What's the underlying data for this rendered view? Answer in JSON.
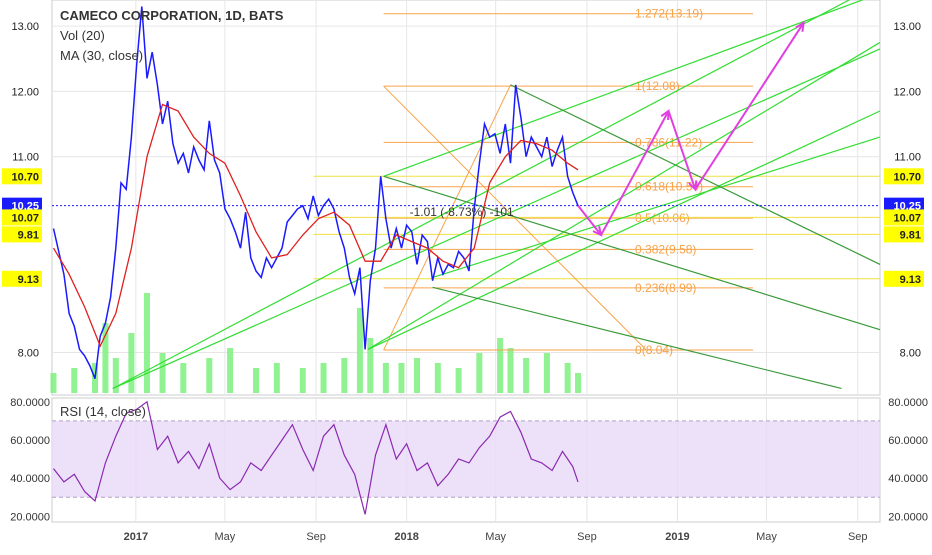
{
  "legend": {
    "title": "CAMECO CORPORATION, 1D, BATS",
    "vol": "Vol (20)",
    "ma": "MA (30, close)",
    "rsi": "RSI (14, close)"
  },
  "colors": {
    "price": "#1a1aff",
    "ma": "#e02020",
    "volume": "#7cf07c",
    "pitchfork": "#33dd33",
    "pitchfork_dark": "#3a9a3a",
    "fib": "#f7a34a",
    "fib_yellow": "#f0e040",
    "projection": "#e040e0",
    "rsi_line": "#8a2ab0",
    "rsi_band": "#e8d8f8",
    "current_price_line": "#1a1aff",
    "grid": "#e6e6e6"
  },
  "annotations": {
    "measure": "-1.01 (-8.73%) -101"
  },
  "chart_data": [
    {
      "type": "line",
      "title": "CAMECO CORPORATION, 1D, BATS",
      "x_tick_labels": [
        "2017",
        "May",
        "Sep",
        "2018",
        "May",
        "Sep",
        "2019",
        "May",
        "Sep"
      ],
      "x_ticks": [
        "2017-01",
        "2017-05",
        "2017-09",
        "2018-01",
        "2018-05",
        "2018-09",
        "2019-01",
        "2019-05",
        "2019-09"
      ],
      "y_ticks": [
        8.0,
        11.0,
        12.0,
        13.0
      ],
      "y_tick_labels": [
        "8.00",
        "11.00",
        "12.00",
        "13.00"
      ],
      "ylim": [
        7.35,
        13.4
      ],
      "xlim": [
        "2016-09-10",
        "2019-10-01"
      ],
      "series": [
        {
          "name": "",
          "role": "price",
          "x": [
            "2016-09-12",
            "2016-09-19",
            "2016-09-26",
            "2016-10-03",
            "2016-10-10",
            "2016-10-17",
            "2016-10-24",
            "2016-10-31",
            "2016-11-07",
            "2016-11-14",
            "2016-11-21",
            "2016-11-28",
            "2016-12-05",
            "2016-12-12",
            "2016-12-19",
            "2016-12-26",
            "2017-01-02",
            "2017-01-09",
            "2017-01-16",
            "2017-01-23",
            "2017-01-30",
            "2017-02-06",
            "2017-02-13",
            "2017-02-20",
            "2017-02-27",
            "2017-03-06",
            "2017-03-13",
            "2017-03-20",
            "2017-03-27",
            "2017-04-03",
            "2017-04-10",
            "2017-04-17",
            "2017-04-24",
            "2017-05-01",
            "2017-05-08",
            "2017-05-15",
            "2017-05-22",
            "2017-05-29",
            "2017-06-05",
            "2017-06-12",
            "2017-06-19",
            "2017-06-26",
            "2017-07-03",
            "2017-07-10",
            "2017-07-17",
            "2017-07-24",
            "2017-07-31",
            "2017-08-07",
            "2017-08-14",
            "2017-08-21",
            "2017-08-28",
            "2017-09-04",
            "2017-09-11",
            "2017-09-18",
            "2017-09-25",
            "2017-10-02",
            "2017-10-09",
            "2017-10-16",
            "2017-10-23",
            "2017-10-30",
            "2017-11-06",
            "2017-11-13",
            "2017-11-20",
            "2017-11-27",
            "2017-12-04",
            "2017-12-11",
            "2017-12-18",
            "2017-12-25",
            "2018-01-01",
            "2018-01-08",
            "2018-01-15",
            "2018-01-22",
            "2018-01-29",
            "2018-02-05",
            "2018-02-12",
            "2018-02-19",
            "2018-02-26",
            "2018-03-05",
            "2018-03-12",
            "2018-03-19",
            "2018-03-26",
            "2018-04-02",
            "2018-04-09",
            "2018-04-16",
            "2018-04-23",
            "2018-04-30",
            "2018-05-07",
            "2018-05-14",
            "2018-05-21",
            "2018-05-28",
            "2018-06-04",
            "2018-06-11",
            "2018-06-18",
            "2018-06-25",
            "2018-07-02",
            "2018-07-09",
            "2018-07-16",
            "2018-07-23",
            "2018-07-30",
            "2018-08-06",
            "2018-08-13",
            "2018-08-20"
          ],
          "values": [
            9.9,
            9.55,
            9.2,
            8.6,
            8.4,
            8.05,
            7.95,
            7.8,
            7.6,
            8.25,
            8.45,
            8.85,
            9.6,
            10.6,
            10.5,
            11.3,
            12.4,
            13.3,
            12.2,
            12.6,
            12.1,
            11.5,
            11.85,
            11.2,
            10.9,
            11.05,
            10.75,
            11.15,
            10.95,
            10.8,
            11.55,
            10.95,
            10.75,
            10.2,
            10.05,
            9.85,
            9.6,
            10.15,
            9.45,
            9.25,
            9.15,
            9.45,
            9.3,
            9.45,
            9.6,
            10.0,
            10.1,
            10.2,
            10.25,
            10.05,
            10.4,
            10.1,
            10.25,
            10.35,
            10.2,
            9.85,
            9.6,
            9.15,
            8.9,
            9.3,
            8.05,
            9.1,
            9.6,
            10.7,
            10.05,
            9.6,
            9.9,
            9.6,
            9.95,
            9.85,
            9.35,
            9.8,
            9.7,
            9.1,
            9.45,
            9.2,
            9.35,
            9.3,
            9.55,
            9.45,
            9.25,
            10.2,
            10.9,
            11.5,
            11.3,
            11.35,
            11.05,
            11.5,
            10.9,
            12.1,
            11.6,
            11.0,
            11.3,
            11.15,
            11.0,
            11.3,
            10.85,
            11.1,
            11.3,
            10.7,
            10.45,
            10.25
          ]
        },
        {
          "name": "",
          "role": "moving-average",
          "x": [
            "2016-09-12",
            "2016-10-03",
            "2016-10-24",
            "2016-11-14",
            "2016-12-05",
            "2016-12-26",
            "2017-01-16",
            "2017-02-06",
            "2017-02-27",
            "2017-03-20",
            "2017-04-10",
            "2017-05-01",
            "2017-05-22",
            "2017-06-12",
            "2017-07-03",
            "2017-07-24",
            "2017-08-14",
            "2017-09-04",
            "2017-09-25",
            "2017-10-16",
            "2017-11-06",
            "2017-11-27",
            "2017-12-18",
            "2018-01-08",
            "2018-01-29",
            "2018-02-19",
            "2018-03-12",
            "2018-04-02",
            "2018-04-23",
            "2018-05-14",
            "2018-06-04",
            "2018-06-25",
            "2018-07-16",
            "2018-08-06",
            "2018-08-20"
          ],
          "values": [
            9.6,
            9.2,
            8.7,
            8.1,
            8.6,
            9.6,
            11.0,
            11.8,
            11.7,
            11.3,
            11.05,
            10.9,
            10.4,
            9.85,
            9.45,
            9.5,
            9.8,
            10.05,
            10.15,
            9.95,
            9.4,
            9.4,
            9.8,
            9.7,
            9.6,
            9.4,
            9.3,
            9.6,
            10.6,
            11.0,
            11.25,
            11.2,
            11.1,
            10.9,
            10.8
          ]
        }
      ],
      "volume": {
        "name": "Vol (20)",
        "x": [
          "2016-09-12",
          "2016-10-10",
          "2016-11-07",
          "2016-11-21",
          "2016-12-05",
          "2016-12-26",
          "2017-01-16",
          "2017-02-06",
          "2017-03-06",
          "2017-04-10",
          "2017-05-08",
          "2017-06-12",
          "2017-07-10",
          "2017-08-14",
          "2017-09-11",
          "2017-10-09",
          "2017-10-30",
          "2017-11-13",
          "2017-12-04",
          "2017-12-25",
          "2018-01-15",
          "2018-02-12",
          "2018-03-12",
          "2018-04-09",
          "2018-05-07",
          "2018-05-21",
          "2018-06-11",
          "2018-07-09",
          "2018-08-06",
          "2018-08-20"
        ],
        "values": [
          0.2,
          0.25,
          0.3,
          0.7,
          0.35,
          0.6,
          1.0,
          0.4,
          0.3,
          0.35,
          0.45,
          0.25,
          0.3,
          0.25,
          0.3,
          0.35,
          0.85,
          0.55,
          0.3,
          0.3,
          0.35,
          0.3,
          0.25,
          0.4,
          0.55,
          0.45,
          0.35,
          0.4,
          0.3,
          0.2
        ]
      },
      "current_price": 10.25,
      "right_scale_labels": [
        {
          "value": 13.0,
          "label": "13.00"
        },
        {
          "value": 12.0,
          "label": "12.00"
        },
        {
          "value": 11.0,
          "label": "11.00"
        },
        {
          "value": 10.7,
          "label": "10.70",
          "highlight": "yellow"
        },
        {
          "value": 10.25,
          "label": "10.25",
          "highlight": "blue"
        },
        {
          "value": 10.07,
          "label": "10.07",
          "highlight": "yellow"
        },
        {
          "value": 9.81,
          "label": "9.81",
          "highlight": "yellow"
        },
        {
          "value": 9.13,
          "label": "9.13",
          "highlight": "yellow"
        },
        {
          "value": 8.0,
          "label": "8.00"
        }
      ],
      "left_scale_labels": [
        {
          "value": 13.0,
          "label": "13.00"
        },
        {
          "value": 12.0,
          "label": "12.00"
        },
        {
          "value": 11.0,
          "label": "11.00"
        },
        {
          "value": 10.7,
          "label": "10.70",
          "highlight": "yellow"
        },
        {
          "value": 10.25,
          "label": "10.25",
          "highlight": "blue"
        },
        {
          "value": 10.07,
          "label": "10.07",
          "highlight": "yellow"
        },
        {
          "value": 9.81,
          "label": "9.81",
          "highlight": "yellow"
        },
        {
          "value": 9.13,
          "label": "9.13",
          "highlight": "yellow"
        },
        {
          "value": 8.0,
          "label": "8.00"
        }
      ],
      "fibonacci": {
        "start": "2017-12-01",
        "end": "2018-08-20",
        "levels": [
          {
            "label": "1.272(13.19)",
            "value": 13.19
          },
          {
            "label": "1(12.08)",
            "value": 12.08
          },
          {
            "label": "0.786(11.22)",
            "value": 11.22
          },
          {
            "label": "0.618(10.54)",
            "value": 10.54
          },
          {
            "label": "0.5(10.06)",
            "value": 10.06
          },
          {
            "label": "0.382(9.58)",
            "value": 9.58
          },
          {
            "label": "0.236(8.99)",
            "value": 8.99
          },
          {
            "label": "0(8.04)",
            "value": 8.04
          }
        ],
        "extra_lines": [
          10.7,
          10.07,
          9.81,
          9.13
        ]
      },
      "pitchfork_up": {
        "lines": [
          {
            "from": [
              "2016-12-01",
              7.45
            ],
            "to": [
              "2019-10-01",
              13.65
            ]
          },
          {
            "from": [
              "2016-12-01",
              7.45
            ],
            "to": [
              "2019-10-01",
              12.65
            ]
          },
          {
            "from": [
              "2017-11-10",
              8.05
            ],
            "to": [
              "2019-10-01",
              12.75
            ]
          },
          {
            "from": [
              "2017-11-10",
              8.05
            ],
            "to": [
              "2019-10-01",
              11.7
            ]
          },
          {
            "from": [
              "2017-12-01",
              10.7
            ],
            "to": [
              "2019-10-01",
              13.5
            ]
          },
          {
            "from": [
              "2018-02-05",
              9.15
            ],
            "to": [
              "2019-10-01",
              11.3
            ]
          }
        ]
      },
      "pitchfork_down": {
        "lines": [
          {
            "from": [
              "2018-05-21",
              12.1
            ],
            "to": [
              "2019-10-01",
              9.35
            ]
          },
          {
            "from": [
              "2017-12-01",
              10.7
            ],
            "to": [
              "2019-10-01",
              8.35
            ]
          },
          {
            "from": [
              "2018-02-05",
              9.0
            ],
            "to": [
              "2019-08-10",
              7.45
            ]
          }
        ]
      },
      "fib_trend_lines": [
        {
          "from": [
            "2017-12-01",
            12.08
          ],
          "to": [
            "2018-11-20",
            8.04
          ]
        },
        {
          "from": [
            "2017-12-01",
            8.04
          ],
          "to": [
            "2018-05-21",
            12.1
          ]
        }
      ],
      "projection_path": {
        "x": [
          "2018-08-20",
          "2018-09-20",
          "2018-12-20",
          "2019-01-25",
          "2019-06-20"
        ],
        "values": [
          10.25,
          9.8,
          11.7,
          10.5,
          13.05
        ]
      }
    },
    {
      "type": "line",
      "title": "RSI (14, close)",
      "y_ticks": [
        20.0,
        40.0,
        60.0,
        80.0
      ],
      "y_tick_labels": [
        "20.0000",
        "40.0000",
        "60.0000",
        "80.0000"
      ],
      "ylim": [
        17,
        82
      ],
      "band": [
        30,
        70
      ],
      "series": [
        {
          "name": "",
          "x": [
            "2016-09-12",
            "2016-09-26",
            "2016-10-10",
            "2016-10-24",
            "2016-11-07",
            "2016-11-21",
            "2016-12-05",
            "2016-12-19",
            "2017-01-02",
            "2017-01-16",
            "2017-01-30",
            "2017-02-13",
            "2017-02-27",
            "2017-03-13",
            "2017-03-27",
            "2017-04-10",
            "2017-04-24",
            "2017-05-08",
            "2017-05-22",
            "2017-06-05",
            "2017-06-19",
            "2017-07-03",
            "2017-07-17",
            "2017-07-31",
            "2017-08-14",
            "2017-08-28",
            "2017-09-11",
            "2017-09-25",
            "2017-10-09",
            "2017-10-23",
            "2017-11-06",
            "2017-11-20",
            "2017-12-04",
            "2017-12-18",
            "2018-01-01",
            "2018-01-15",
            "2018-01-29",
            "2018-02-12",
            "2018-02-26",
            "2018-03-12",
            "2018-03-26",
            "2018-04-09",
            "2018-04-23",
            "2018-05-07",
            "2018-05-21",
            "2018-06-04",
            "2018-06-18",
            "2018-07-02",
            "2018-07-16",
            "2018-07-30",
            "2018-08-13",
            "2018-08-20"
          ],
          "values": [
            45,
            38,
            42,
            33,
            28,
            48,
            62,
            74,
            76,
            80,
            55,
            62,
            48,
            54,
            45,
            58,
            40,
            34,
            38,
            48,
            44,
            52,
            60,
            68,
            55,
            44,
            62,
            68,
            52,
            42,
            21,
            52,
            68,
            50,
            58,
            44,
            48,
            36,
            42,
            50,
            48,
            56,
            62,
            72,
            75,
            64,
            50,
            48,
            44,
            54,
            46,
            38
          ]
        }
      ]
    }
  ]
}
